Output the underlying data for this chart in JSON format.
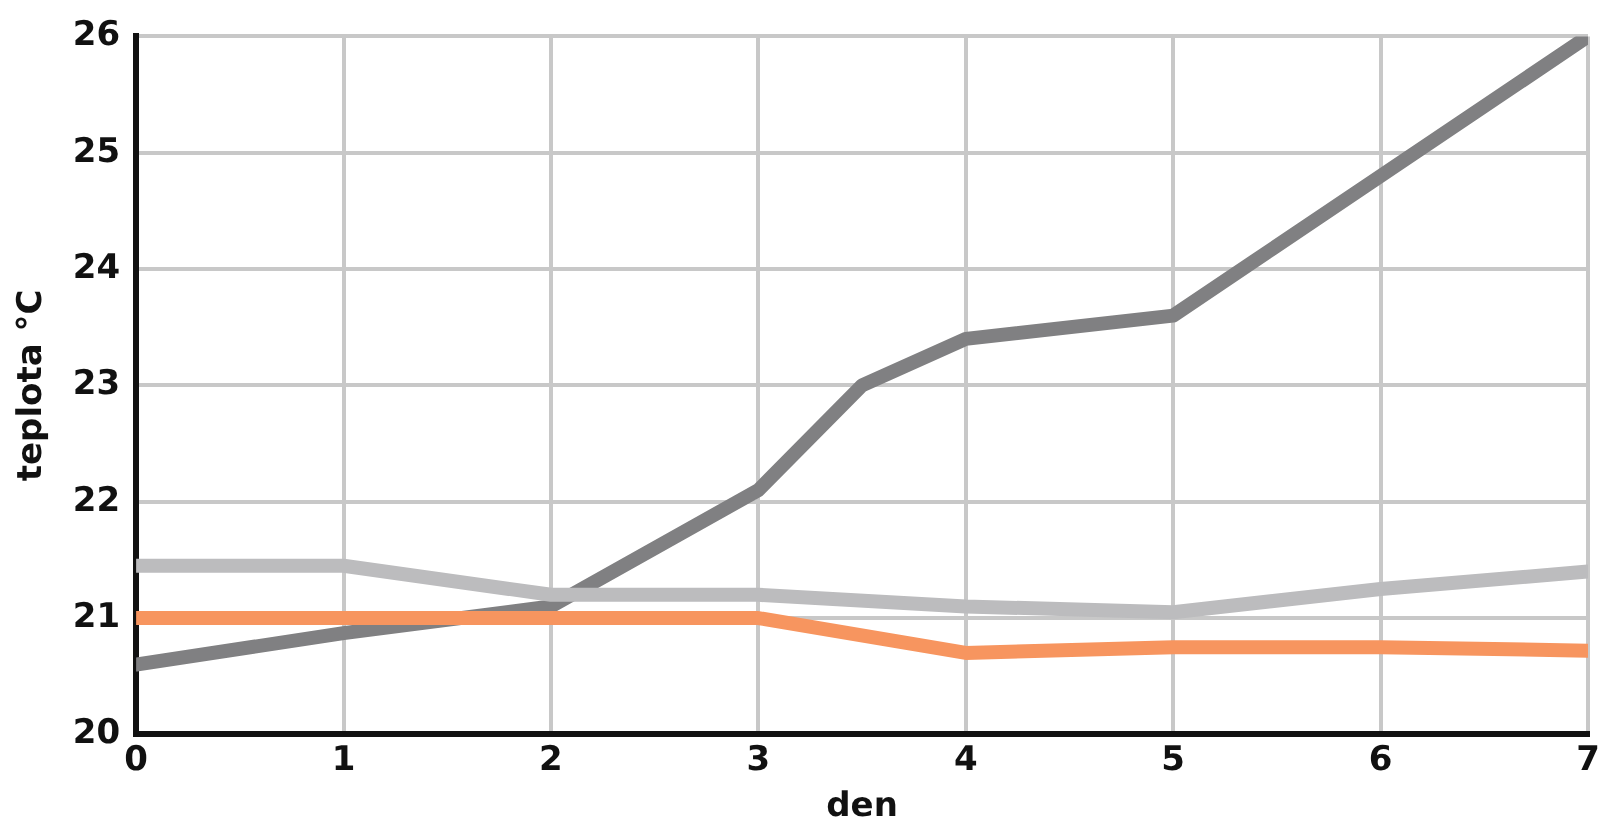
{
  "chart_data": {
    "type": "line",
    "xlabel": "den",
    "ylabel": "teplota °C",
    "x": [
      0,
      1,
      2,
      3,
      4,
      5,
      6,
      7
    ],
    "xlim": [
      0,
      7
    ],
    "xticks": [
      0,
      1,
      2,
      3,
      4,
      5,
      6,
      7
    ],
    "ylim": [
      20,
      26
    ],
    "yticks": [
      20,
      21,
      22,
      23,
      24,
      25,
      26
    ],
    "grid": true,
    "legend": false,
    "marker": "none",
    "line_style": "solid",
    "series": [
      {
        "color": "#bcbcbe",
        "values": [
          21.45,
          21.45,
          21.2,
          21.2,
          21.1,
          21.05,
          21.25,
          21.4
        ]
      },
      {
        "color": "#f7955f",
        "values": [
          21.0,
          21.0,
          21.0,
          21.0,
          20.7,
          20.75,
          20.75,
          20.72
        ]
      },
      {
        "color": "#808082",
        "x": [
          0,
          1,
          2,
          3,
          3.5,
          4,
          5,
          6,
          7
        ],
        "values": [
          20.6,
          20.87,
          21.1,
          22.1,
          23.0,
          23.4,
          23.6,
          24.8,
          26.0
        ]
      }
    ]
  }
}
